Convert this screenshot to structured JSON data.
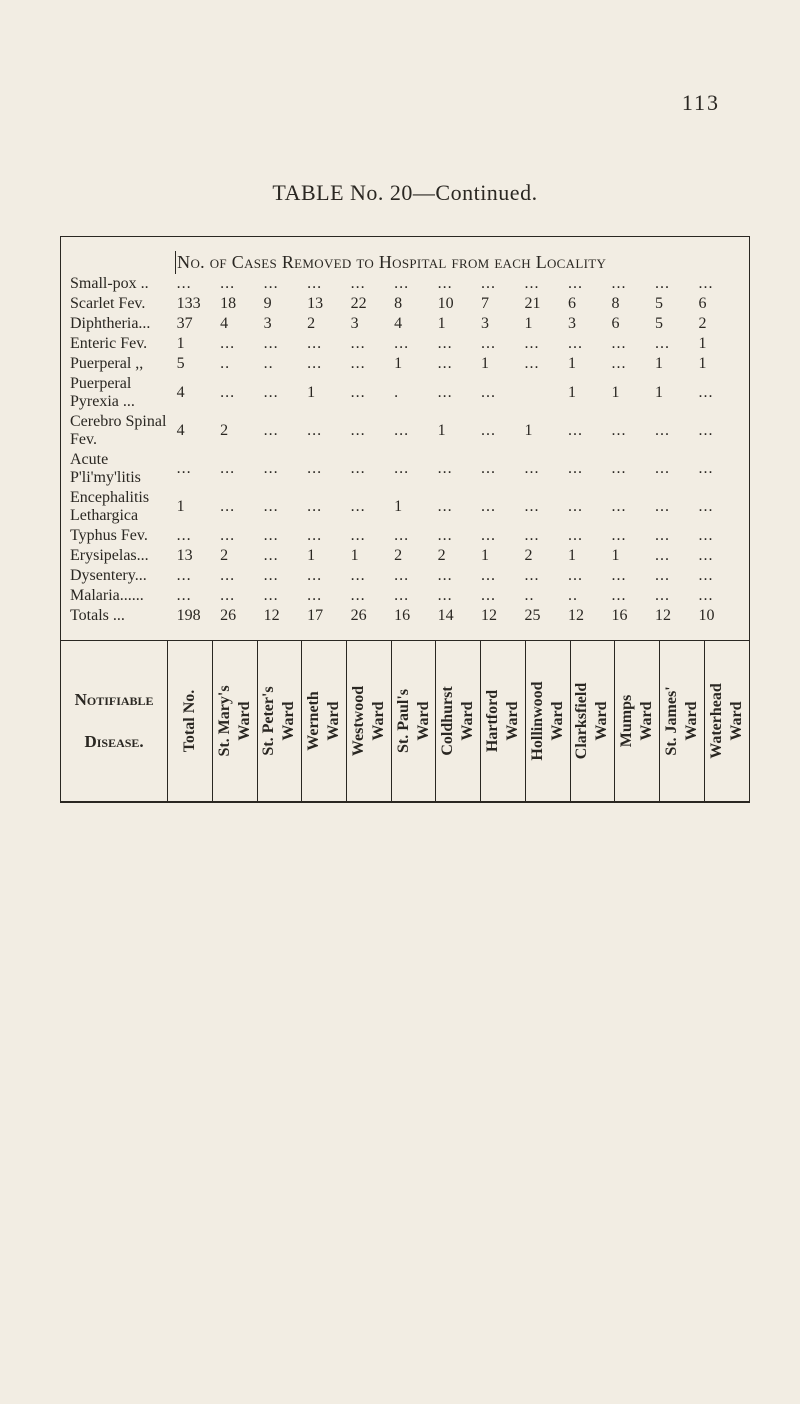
{
  "page_number": "113",
  "title": "TABLE No. 20—Continued.",
  "header": {
    "banner": "No. of Cases Removed to Hospital from each Locality",
    "disease_label_a": "Notifiable",
    "disease_label_b": "Disease.",
    "columns": [
      {
        "l1": "Total No.",
        "l2": ""
      },
      {
        "l1": "St. Mary's",
        "l2": "Ward"
      },
      {
        "l1": "St. Peter's",
        "l2": "Ward"
      },
      {
        "l1": "Werneth",
        "l2": "Ward"
      },
      {
        "l1": "Westwood",
        "l2": "Ward"
      },
      {
        "l1": "St. Paul's",
        "l2": "Ward"
      },
      {
        "l1": "Coldhurst",
        "l2": "Ward"
      },
      {
        "l1": "Hartford",
        "l2": "Ward"
      },
      {
        "l1": "Hollinwood",
        "l2": "Ward"
      },
      {
        "l1": "Clarksfield",
        "l2": "Ward"
      },
      {
        "l1": "Mumps",
        "l2": "Ward"
      },
      {
        "l1": "St. James'",
        "l2": "Ward"
      },
      {
        "l1": "Waterhead",
        "l2": "Ward"
      }
    ]
  },
  "rows": [
    {
      "name": "Small-pox ..",
      "vals": [
        "...",
        "...",
        "...",
        "...",
        "...",
        "...",
        "...",
        "...",
        "...",
        "...",
        "...",
        "...",
        "..."
      ]
    },
    {
      "name": "Scarlet Fev.",
      "vals": [
        "133",
        "18",
        "9",
        "13",
        "22",
        "8",
        "10",
        "7",
        "21",
        "6",
        "8",
        "5",
        "6"
      ]
    },
    {
      "name": "Diphtheria...",
      "vals": [
        "37",
        "4",
        "3",
        "2",
        "3",
        "4",
        "1",
        "3",
        "1",
        "3",
        "6",
        "5",
        "2"
      ]
    },
    {
      "name": "Enteric Fev.",
      "vals": [
        "1",
        "...",
        "...",
        "...",
        "...",
        "...",
        "...",
        "...",
        "...",
        "...",
        "...",
        "...",
        "1"
      ]
    },
    {
      "name": "Puerperal ,,",
      "vals": [
        "5",
        "..",
        "..",
        "...",
        "...",
        "1",
        "...",
        "1",
        "...",
        "1",
        "...",
        "1",
        "1"
      ]
    },
    {
      "name": "Puerperal Pyrexia ...",
      "name2": [
        "Puerperal",
        "  Pyrexia ..."
      ],
      "tall": true,
      "vals": [
        "4",
        "...",
        "...",
        "1",
        "...",
        ".",
        "...",
        "...",
        "",
        "1",
        "1",
        "1",
        "..."
      ]
    },
    {
      "name": "Cerebro Spinal Fev.",
      "name2": [
        "Cerebro",
        "  Spinal Fev."
      ],
      "tall": true,
      "vals": [
        "4",
        "2",
        "...",
        "...",
        "...",
        "...",
        "1",
        "...",
        "1",
        "...",
        "...",
        "...",
        "..."
      ]
    },
    {
      "name": "Acute P'li'my'litis",
      "name2": [
        "Acute",
        "  P'li'my'litis"
      ],
      "tall": true,
      "vals": [
        "...",
        "...",
        "...",
        "...",
        "...",
        "...",
        "...",
        "...",
        "...",
        "...",
        "...",
        "...",
        "..."
      ]
    },
    {
      "name": "Encephalitis Lethargica",
      "name2": [
        "Encephalitis",
        "  Lethargica"
      ],
      "tall": true,
      "vals": [
        "1",
        "...",
        "...",
        "...",
        "...",
        "1",
        "...",
        "...",
        "...",
        "...",
        "...",
        "...",
        "..."
      ]
    },
    {
      "name": "Typhus Fev.",
      "vals": [
        "...",
        "...",
        "...",
        "...",
        "...",
        "...",
        "...",
        "...",
        "...",
        "...",
        "...",
        "...",
        "..."
      ]
    },
    {
      "name": "Erysipelas...",
      "vals": [
        "13",
        "2",
        "...",
        "1",
        "1",
        "2",
        "2",
        "1",
        "2",
        "1",
        "1",
        "...",
        "..."
      ]
    },
    {
      "name": "Dysentery...",
      "vals": [
        "...",
        "...",
        "...",
        "...",
        "...",
        "...",
        "...",
        "...",
        "...",
        "...",
        "...",
        "...",
        "..."
      ]
    },
    {
      "name": "Malaria......",
      "vals": [
        "...",
        "...",
        "...",
        "...",
        "...",
        "...",
        "...",
        "...",
        "..",
        "..",
        "...",
        "...",
        "..."
      ]
    }
  ],
  "totals": {
    "label": "Totals  ...",
    "vals": [
      "198",
      "26",
      "12",
      "17",
      "26",
      "16",
      "14",
      "12",
      "25",
      "12",
      "16",
      "12",
      "10"
    ]
  }
}
